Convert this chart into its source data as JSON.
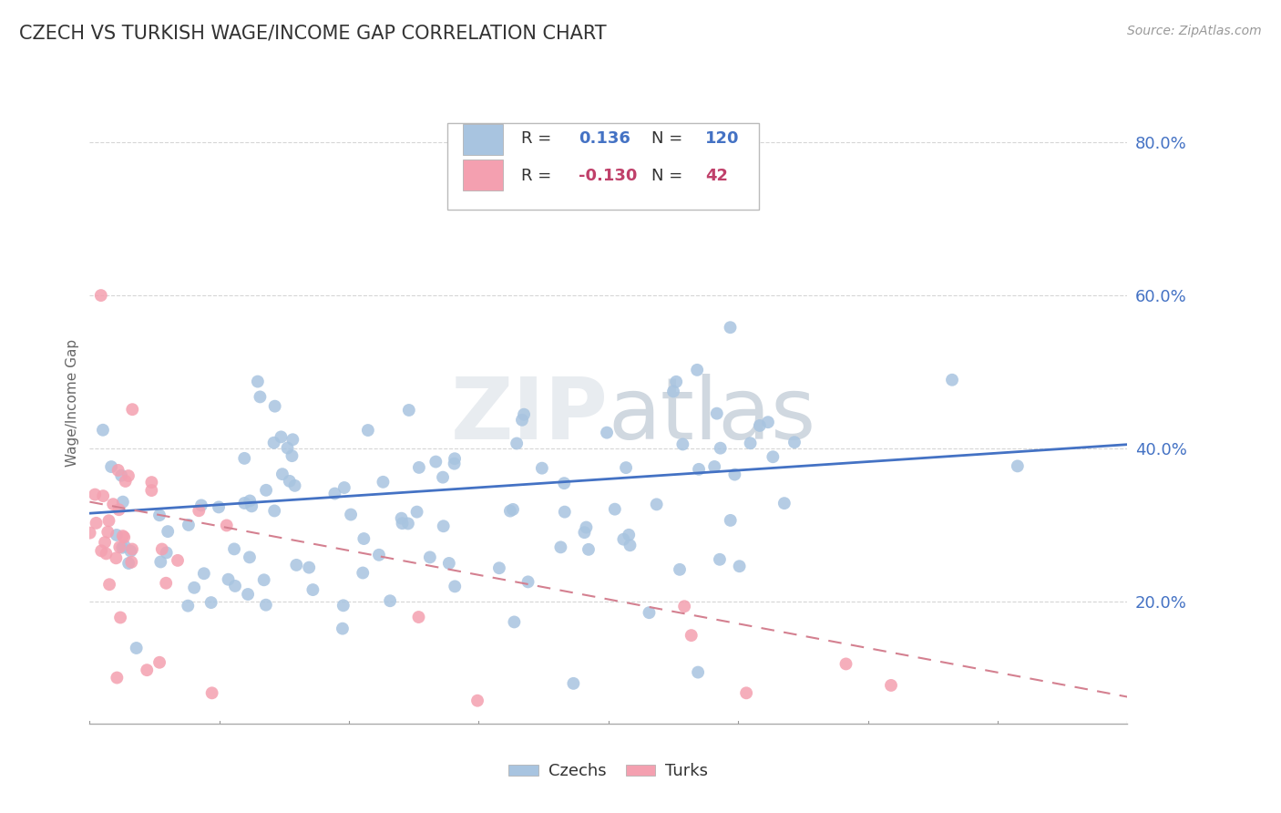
{
  "title": "CZECH VS TURKISH WAGE/INCOME GAP CORRELATION CHART",
  "source": "Source: ZipAtlas.com",
  "ylabel": "Wage/Income Gap",
  "xmin": 0.0,
  "xmax": 0.8,
  "ymin": 0.04,
  "ymax": 0.88,
  "czech_R": 0.136,
  "czech_N": 120,
  "turk_R": -0.13,
  "turk_N": 42,
  "czech_color": "#a8c4e0",
  "turk_color": "#f4a0b0",
  "czech_line_color": "#4472c4",
  "turk_line_color": "#d48090",
  "background_color": "#ffffff",
  "grid_color": "#cccccc",
  "title_color": "#333333",
  "axis_label_color": "#4472c4",
  "legend_R1_color": "#4472c4",
  "legend_R2_color": "#c0406a",
  "watermark_color": "#e8ecf0",
  "ytick_positions": [
    0.2,
    0.4,
    0.6,
    0.8
  ],
  "ytick_labels": [
    "20.0%",
    "40.0%",
    "60.0%",
    "80.0%"
  ],
  "czech_trend_x": [
    0.0,
    0.8
  ],
  "czech_trend_y": [
    0.315,
    0.405
  ],
  "turk_trend_x": [
    0.0,
    0.8
  ],
  "turk_trend_y": [
    0.33,
    0.075
  ]
}
